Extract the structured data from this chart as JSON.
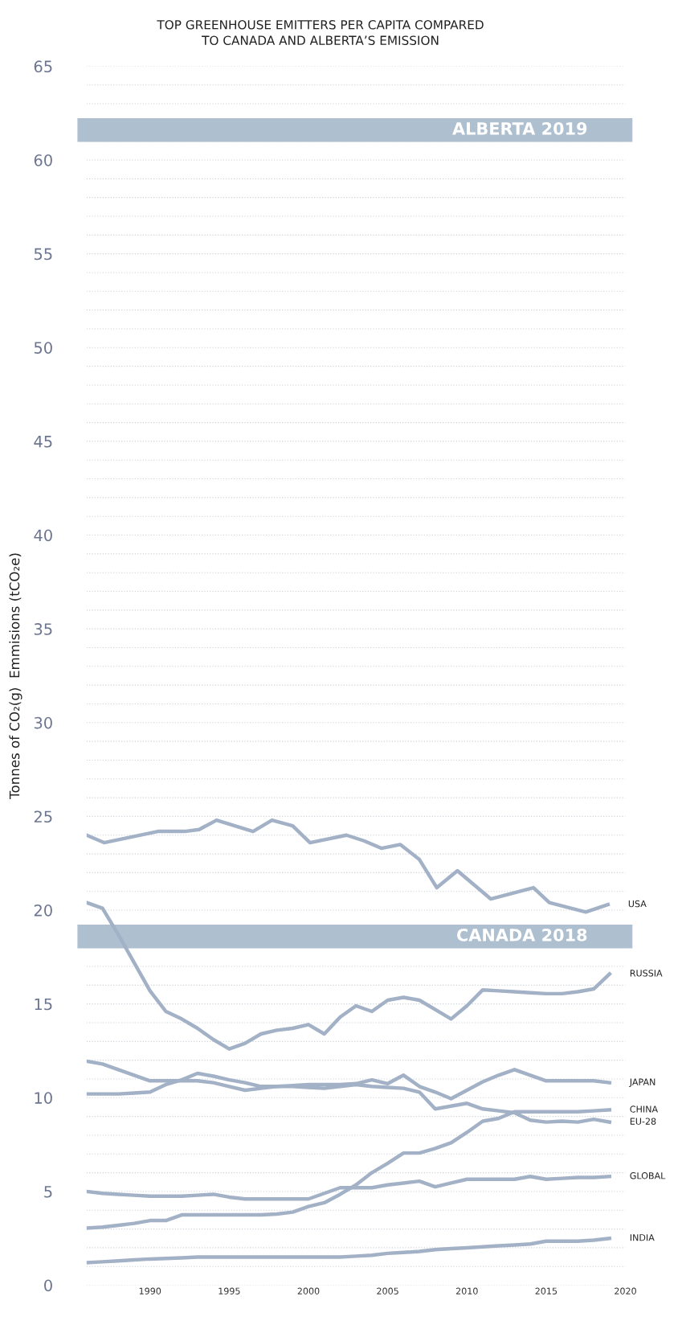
{
  "chart_data": {
    "type": "line",
    "title": "TOP GREENHOUSE EMITTERS PER CAPITA COMPARED\nTO CANADA AND ALBERTA’S EMISSION",
    "ylabel": "Tonnes of CO₂(g)  Emmisions (tCO₂e)",
    "x": [
      1986,
      1987,
      1988,
      1989,
      1990,
      1991,
      1992,
      1993,
      1994,
      1995,
      1996,
      1997,
      1998,
      1999,
      2000,
      2001,
      2002,
      2003,
      2004,
      2005,
      2006,
      2007,
      2008,
      2009,
      2010,
      2011,
      2012,
      2013,
      2014,
      2015,
      2016,
      2017,
      2018,
      2019
    ],
    "series": [
      {
        "name": "USA",
        "color": "#a3b1c6",
        "x": [
          1986,
          1987.1,
          1990.5,
          1992.2,
          1993.1,
          1994.2,
          1996.5,
          1997.7,
          1999,
          2000.1,
          2002.4,
          2003.5,
          2004.6,
          2005.8,
          2007,
          2008.1,
          2009.4,
          2011.5,
          2014.2,
          2015.2,
          2017.5,
          2018.9
        ],
        "values": [
          24.0,
          23.6,
          24.2,
          24.2,
          24.3,
          24.8,
          24.2,
          24.8,
          24.5,
          23.6,
          24.0,
          23.7,
          23.3,
          23.5,
          22.7,
          21.2,
          22.1,
          20.6,
          21.2,
          20.4,
          19.9,
          20.3
        ]
      },
      {
        "name": "RUSSIA",
        "color": "#a3b1c6",
        "values": [
          20.4,
          20.1,
          18.7,
          17.2,
          15.7,
          14.6,
          14.2,
          13.7,
          13.1,
          12.6,
          12.9,
          13.4,
          13.6,
          13.7,
          13.9,
          13.4,
          14.3,
          14.9,
          14.6,
          15.2,
          15.35,
          15.2,
          14.7,
          14.2,
          14.9,
          15.75,
          15.7,
          15.65,
          15.6,
          15.55,
          15.55,
          15.65,
          15.8,
          16.6
        ]
      },
      {
        "name": "JAPAN",
        "color": "#a3b1c6",
        "values": [
          10.2,
          10.2,
          10.2,
          10.25,
          10.3,
          10.7,
          10.95,
          11.3,
          11.15,
          10.95,
          10.8,
          10.6,
          10.6,
          10.65,
          10.7,
          10.7,
          10.7,
          10.75,
          10.95,
          10.75,
          11.2,
          10.6,
          10.3,
          9.95,
          10.4,
          10.85,
          11.2,
          11.5,
          11.2,
          10.9,
          10.9,
          10.9,
          10.9,
          10.8
        ]
      },
      {
        "name": "CHINA",
        "color": "#a3b1c6",
        "values": [
          3.05,
          3.1,
          3.2,
          3.3,
          3.45,
          3.45,
          3.75,
          3.75,
          3.75,
          3.75,
          3.75,
          3.75,
          3.8,
          3.9,
          4.2,
          4.4,
          4.85,
          5.35,
          6.0,
          6.5,
          7.05,
          7.05,
          7.3,
          7.6,
          8.15,
          8.75,
          8.9,
          9.25,
          9.25,
          9.25,
          9.25,
          9.25,
          9.3,
          9.35
        ]
      },
      {
        "name": "EU-28",
        "color": "#a3b1c6",
        "values": [
          11.95,
          11.8,
          11.5,
          11.2,
          10.9,
          10.9,
          10.9,
          10.9,
          10.8,
          10.6,
          10.4,
          10.5,
          10.6,
          10.6,
          10.55,
          10.5,
          10.6,
          10.7,
          10.6,
          10.55,
          10.5,
          10.3,
          9.4,
          9.55,
          9.7,
          9.4,
          9.3,
          9.2,
          8.8,
          8.7,
          8.75,
          8.7,
          8.85,
          8.7
        ]
      },
      {
        "name": "GLOBAL",
        "color": "#a3b1c6",
        "values": [
          5.0,
          4.9,
          4.85,
          4.8,
          4.75,
          4.75,
          4.75,
          4.8,
          4.85,
          4.7,
          4.6,
          4.6,
          4.6,
          4.6,
          4.6,
          4.9,
          5.2,
          5.2,
          5.2,
          5.35,
          5.45,
          5.55,
          5.25,
          5.45,
          5.65,
          5.65,
          5.65,
          5.65,
          5.8,
          5.65,
          5.7,
          5.75,
          5.75,
          5.8
        ]
      },
      {
        "name": "INDIA",
        "color": "#a3b1c6",
        "values": [
          1.2,
          1.25,
          1.3,
          1.35,
          1.4,
          1.43,
          1.46,
          1.5,
          1.5,
          1.5,
          1.5,
          1.5,
          1.5,
          1.5,
          1.5,
          1.5,
          1.5,
          1.55,
          1.6,
          1.7,
          1.75,
          1.8,
          1.9,
          1.95,
          2.0,
          2.05,
          2.1,
          2.15,
          2.2,
          2.35,
          2.35,
          2.35,
          2.4,
          2.5
        ]
      }
    ],
    "bands": [
      {
        "axis": "y",
        "from": 61.0,
        "to": 62.2,
        "label": "ALBERTA 2019",
        "color": "#aebfcf"
      },
      {
        "axis": "y",
        "from": 18.0,
        "to": 19.2,
        "label": "CANADA 2018",
        "color": "#aebfcf"
      }
    ],
    "xlim": [
      1986,
      2020
    ],
    "xticks": [
      1990,
      1995,
      2000,
      2005,
      2010,
      2015,
      2020
    ],
    "ylim": [
      0,
      65
    ],
    "yticks": [
      0,
      {
        "value": 1,
        "label": null
      },
      {
        "value": 2,
        "label": null
      },
      {
        "value": 3,
        "label": null
      },
      {
        "value": 4,
        "label": null
      },
      5,
      {
        "value": 6,
        "label": null
      },
      {
        "value": 7,
        "label": null
      },
      {
        "value": 8,
        "label": null
      },
      {
        "value": 9,
        "label": null
      },
      10,
      {
        "value": 11,
        "label": null
      },
      {
        "value": 12,
        "label": null
      },
      {
        "value": 13,
        "label": null
      },
      {
        "value": 14,
        "label": null
      },
      15,
      {
        "value": 16,
        "label": null
      },
      {
        "value": 17,
        "label": null
      },
      {
        "value": 18,
        "label": null
      },
      20,
      {
        "value": 21,
        "label": null
      },
      {
        "value": 22,
        "label": null
      },
      {
        "value": 23,
        "label": null
      },
      {
        "value": 24,
        "label": null
      },
      25,
      {
        "value": 26,
        "label": null
      },
      {
        "value": 27,
        "label": null
      },
      {
        "value": 28,
        "label": null
      },
      {
        "value": 29,
        "label": null
      },
      30,
      {
        "value": 31,
        "label": null
      },
      {
        "value": 32,
        "label": null
      },
      {
        "value": 33,
        "label": null
      },
      {
        "value": 34,
        "label": null
      },
      35,
      {
        "value": 36,
        "label": null
      },
      {
        "value": 37,
        "label": null
      },
      {
        "value": 38,
        "label": null
      },
      {
        "value": 39,
        "label": null
      },
      40,
      {
        "value": 41,
        "label": null
      },
      {
        "value": 42,
        "label": null
      },
      {
        "value": 43,
        "label": null
      },
      {
        "value": 44,
        "label": null
      },
      45,
      {
        "value": 46,
        "label": null
      },
      {
        "value": 47,
        "label": null
      },
      {
        "value": 48,
        "label": null
      },
      {
        "value": 49,
        "label": null
      },
      50,
      {
        "value": 51,
        "label": null
      },
      {
        "value": 52,
        "label": null
      },
      {
        "value": 53,
        "label": null
      },
      {
        "value": 54,
        "label": null
      },
      55,
      {
        "value": 56,
        "label": null
      },
      {
        "value": 57,
        "label": null
      },
      {
        "value": 58,
        "label": null
      },
      {
        "value": 59,
        "label": null
      },
      60,
      {
        "value": 61,
        "label": null
      },
      {
        "value": 63,
        "label": null
      },
      {
        "value": 64,
        "label": null
      },
      65
    ],
    "grid": "y",
    "legend": false,
    "marker": "none",
    "line_style": "solid"
  }
}
